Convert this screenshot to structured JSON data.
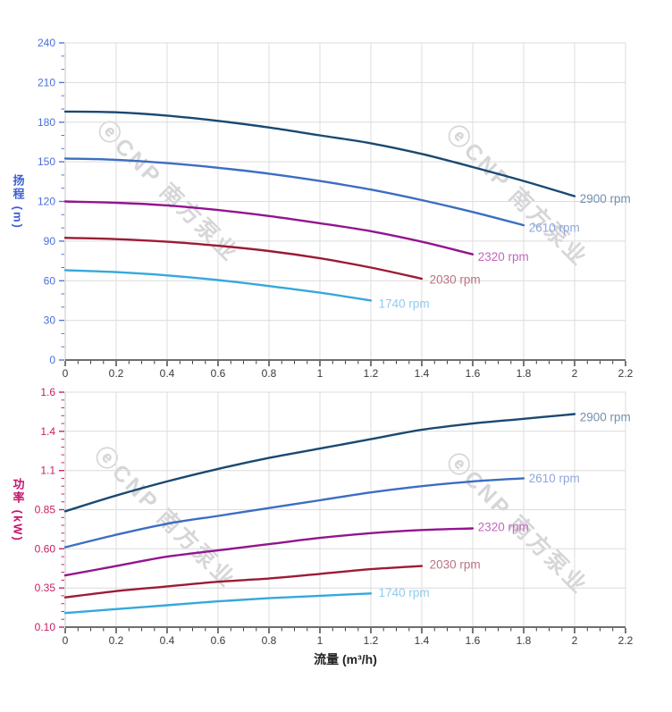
{
  "watermark": {
    "text": "ⓔCNP 南方泵业"
  },
  "chart_data": [
    {
      "type": "line",
      "title": "",
      "ylabel": "扬程 (m)",
      "xlabel": "",
      "xlim": [
        0,
        2.2
      ],
      "ylim": [
        0,
        240
      ],
      "grid": true,
      "legend_position": "end-of-curve-labels",
      "x_ticks": [
        {
          "value": 0,
          "label": "0"
        },
        {
          "value": 0.2,
          "label": "0.2"
        },
        {
          "value": 0.4,
          "label": "0.4"
        },
        {
          "value": 0.6,
          "label": "0.6"
        },
        {
          "value": 0.8,
          "label": "0.8"
        },
        {
          "value": 1,
          "label": "1"
        },
        {
          "value": 1.2,
          "label": "1.2"
        },
        {
          "value": 1.4,
          "label": "1.4"
        },
        {
          "value": 1.6,
          "label": "1.6"
        },
        {
          "value": 1.8,
          "label": "1.8"
        },
        {
          "value": 2,
          "label": "2"
        },
        {
          "value": 2.2,
          "label": "2.2"
        }
      ],
      "y_ticks": [
        {
          "value": 0,
          "label": "0"
        },
        {
          "value": 30,
          "label": "30"
        },
        {
          "value": 60,
          "label": "60"
        },
        {
          "value": 90,
          "label": "90"
        },
        {
          "value": 120,
          "label": "120"
        },
        {
          "value": 150,
          "label": "150"
        },
        {
          "value": 180,
          "label": "180"
        },
        {
          "value": 210,
          "label": "210"
        },
        {
          "value": 240,
          "label": "240"
        }
      ],
      "x_minor_step": 0.05,
      "y_minor_step": 10,
      "tick_color": "#5276DE",
      "tick_label_color": "#4A6FDC",
      "series": [
        {
          "name": "2900 rpm",
          "color": "#1A4971",
          "label_color": "#7390AD",
          "label_anchor": [
            2.02,
            122
          ],
          "points": [
            [
              0,
              188
            ],
            [
              0.2,
              187.5
            ],
            [
              0.4,
              185
            ],
            [
              0.6,
              181
            ],
            [
              0.8,
              176
            ],
            [
              1.0,
              170
            ],
            [
              1.2,
              164
            ],
            [
              1.4,
              156
            ],
            [
              1.6,
              146
            ],
            [
              1.8,
              135.5
            ],
            [
              2.0,
              124
            ]
          ]
        },
        {
          "name": "2610 rpm",
          "color": "#3C6EC0",
          "label_color": "#8FA6DC",
          "label_anchor": [
            1.82,
            100
          ],
          "points": [
            [
              0,
              152.5
            ],
            [
              0.2,
              151.5
            ],
            [
              0.4,
              149
            ],
            [
              0.6,
              145.5
            ],
            [
              0.8,
              141
            ],
            [
              1.0,
              135.5
            ],
            [
              1.2,
              129
            ],
            [
              1.4,
              121
            ],
            [
              1.6,
              112
            ],
            [
              1.8,
              102
            ]
          ]
        },
        {
          "name": "2320 rpm",
          "color": "#93148F",
          "label_color": "#C466BB",
          "label_anchor": [
            1.62,
            78
          ],
          "points": [
            [
              0,
              120
            ],
            [
              0.2,
              119
            ],
            [
              0.4,
              117
            ],
            [
              0.6,
              113.5
            ],
            [
              0.8,
              109
            ],
            [
              1.0,
              103.5
            ],
            [
              1.2,
              97.5
            ],
            [
              1.4,
              89.5
            ],
            [
              1.6,
              80
            ]
          ]
        },
        {
          "name": "2030 rpm",
          "color": "#9C1B33",
          "label_color": "#BA7383",
          "label_anchor": [
            1.43,
            61
          ],
          "points": [
            [
              0,
              92.5
            ],
            [
              0.2,
              91.5
            ],
            [
              0.4,
              89.5
            ],
            [
              0.6,
              86.5
            ],
            [
              0.8,
              82.5
            ],
            [
              1.0,
              77
            ],
            [
              1.2,
              70
            ],
            [
              1.4,
              61.5
            ]
          ]
        },
        {
          "name": "1740 rpm",
          "color": "#35A8DC",
          "label_color": "#90CBEE",
          "label_anchor": [
            1.23,
            42.5
          ],
          "points": [
            [
              0,
              68
            ],
            [
              0.2,
              66.5
            ],
            [
              0.4,
              64
            ],
            [
              0.6,
              60.5
            ],
            [
              0.8,
              56
            ],
            [
              1.0,
              51
            ],
            [
              1.2,
              45
            ]
          ]
        }
      ]
    },
    {
      "type": "line",
      "title": "",
      "ylabel": "功率 (kW)",
      "xlabel": "流量 (m³/h)",
      "xlim": [
        0,
        2.2
      ],
      "ylim": [
        0.1,
        1.6
      ],
      "grid": true,
      "legend_position": "end-of-curve-labels",
      "x_ticks": [
        {
          "value": 0,
          "label": "0"
        },
        {
          "value": 0.2,
          "label": "0.2"
        },
        {
          "value": 0.4,
          "label": "0.4"
        },
        {
          "value": 0.6,
          "label": "0.6"
        },
        {
          "value": 0.8,
          "label": "0.8"
        },
        {
          "value": 1,
          "label": "1"
        },
        {
          "value": 1.2,
          "label": "1.2"
        },
        {
          "value": 1.4,
          "label": "1.4"
        },
        {
          "value": 1.6,
          "label": "1.6"
        },
        {
          "value": 1.8,
          "label": "1.8"
        },
        {
          "value": 2,
          "label": "2"
        },
        {
          "value": 2.2,
          "label": "2.2"
        }
      ],
      "y_ticks": [
        {
          "value": 0.1,
          "label": "0.10"
        },
        {
          "value": 0.35,
          "label": "0.35"
        },
        {
          "value": 0.6,
          "label": "0.60"
        },
        {
          "value": 0.85,
          "label": "0.85"
        },
        {
          "value": 1.1,
          "label": "1.1"
        },
        {
          "value": 1.35,
          "label": "1.4"
        },
        {
          "value": 1.6,
          "label": "1.6"
        }
      ],
      "x_minor_step": 0.05,
      "y_minor_step": 0.05,
      "tick_color": "#CB2268",
      "tick_label_color": "#C81E62",
      "series": [
        {
          "name": "2900 rpm",
          "color": "#1A4971",
          "label_color": "#7390AD",
          "label_anchor": [
            2.02,
            1.44
          ],
          "points": [
            [
              0,
              0.84
            ],
            [
              0.2,
              0.94
            ],
            [
              0.4,
              1.03
            ],
            [
              0.6,
              1.11
            ],
            [
              0.8,
              1.18
            ],
            [
              1.0,
              1.24
            ],
            [
              1.2,
              1.3
            ],
            [
              1.4,
              1.36
            ],
            [
              1.6,
              1.4
            ],
            [
              1.8,
              1.43
            ],
            [
              2.0,
              1.46
            ]
          ]
        },
        {
          "name": "2610 rpm",
          "color": "#3C6EC0",
          "label_color": "#8FA6DC",
          "label_anchor": [
            1.82,
            1.05
          ],
          "points": [
            [
              0,
              0.61
            ],
            [
              0.2,
              0.69
            ],
            [
              0.4,
              0.76
            ],
            [
              0.6,
              0.81
            ],
            [
              0.8,
              0.86
            ],
            [
              1.0,
              0.91
            ],
            [
              1.2,
              0.96
            ],
            [
              1.4,
              1.0
            ],
            [
              1.6,
              1.03
            ],
            [
              1.8,
              1.05
            ]
          ]
        },
        {
          "name": "2320 rpm",
          "color": "#93148F",
          "label_color": "#C466BB",
          "label_anchor": [
            1.62,
            0.74
          ],
          "points": [
            [
              0,
              0.43
            ],
            [
              0.2,
              0.49
            ],
            [
              0.4,
              0.55
            ],
            [
              0.6,
              0.59
            ],
            [
              0.8,
              0.63
            ],
            [
              1.0,
              0.67
            ],
            [
              1.2,
              0.7
            ],
            [
              1.4,
              0.72
            ],
            [
              1.6,
              0.73
            ]
          ]
        },
        {
          "name": "2030 rpm",
          "color": "#9C1B33",
          "label_color": "#BA7383",
          "label_anchor": [
            1.43,
            0.5
          ],
          "points": [
            [
              0,
              0.29
            ],
            [
              0.2,
              0.33
            ],
            [
              0.4,
              0.36
            ],
            [
              0.6,
              0.39
            ],
            [
              0.8,
              0.41
            ],
            [
              1.0,
              0.44
            ],
            [
              1.2,
              0.47
            ],
            [
              1.4,
              0.49
            ]
          ]
        },
        {
          "name": "1740 rpm",
          "color": "#35A8DC",
          "label_color": "#90CBEE",
          "label_anchor": [
            1.23,
            0.32
          ],
          "points": [
            [
              0,
              0.19
            ],
            [
              0.2,
              0.215
            ],
            [
              0.4,
              0.24
            ],
            [
              0.6,
              0.265
            ],
            [
              0.8,
              0.285
            ],
            [
              1.0,
              0.3
            ],
            [
              1.2,
              0.315
            ]
          ]
        }
      ]
    }
  ]
}
